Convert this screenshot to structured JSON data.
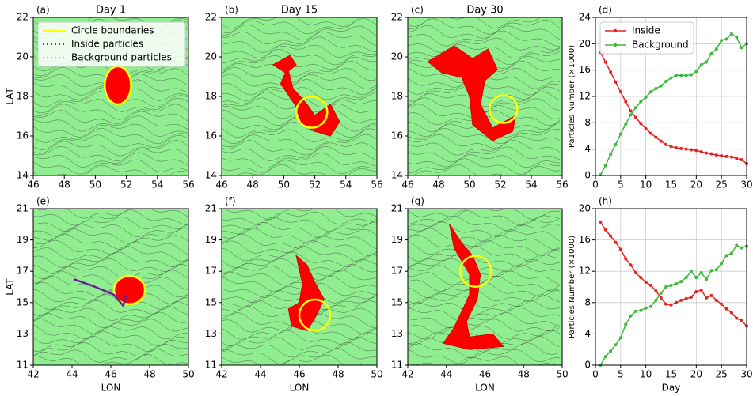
{
  "chart_data": [
    {
      "type": "map",
      "panel": "(a)",
      "title": "Day 1",
      "xlim": [
        46,
        56
      ],
      "ylim": [
        14,
        22
      ],
      "xticks": [
        46,
        48,
        50,
        52,
        54,
        56
      ],
      "yticks": [
        14,
        16,
        18,
        20,
        22
      ],
      "ylabel": "LAT",
      "legend": [
        {
          "name": "Circle boundaries",
          "color": "#ffff00",
          "style": "solid"
        },
        {
          "name": "Inside particles",
          "color": "#ff0000",
          "style": "dotted"
        },
        {
          "name": "Background particles",
          "color": "#66dd66",
          "style": "dotted"
        }
      ]
    },
    {
      "type": "map",
      "panel": "(b)",
      "title": "Day 15",
      "xlim": [
        46,
        56
      ],
      "ylim": [
        14,
        22
      ],
      "xticks": [
        46,
        48,
        50,
        52,
        54,
        56
      ],
      "yticks": [
        14,
        16,
        18,
        20,
        22
      ]
    },
    {
      "type": "map",
      "panel": "(c)",
      "title": "Day 30",
      "xlim": [
        46,
        56
      ],
      "ylim": [
        14,
        22
      ],
      "xticks": [
        46,
        48,
        50,
        52,
        54,
        56
      ],
      "yticks": [
        14,
        16,
        18,
        20,
        22
      ]
    },
    {
      "type": "line",
      "panel": "(d)",
      "xlim": [
        0,
        30
      ],
      "ylim": [
        0,
        24
      ],
      "xticks": [
        0,
        5,
        10,
        15,
        20,
        25,
        30
      ],
      "yticks": [
        0,
        4,
        8,
        12,
        16,
        20,
        24
      ],
      "ylabel": "Particles Number (×1000)",
      "grid": true,
      "legend": "upper left",
      "x": [
        1,
        2,
        3,
        4,
        5,
        6,
        7,
        8,
        9,
        10,
        11,
        12,
        13,
        14,
        15,
        16,
        17,
        18,
        19,
        20,
        21,
        22,
        23,
        24,
        25,
        26,
        27,
        28,
        29,
        30
      ],
      "series": [
        {
          "name": "Inside",
          "color": "#e8231f",
          "values": [
            18.7,
            17.2,
            15.7,
            14.2,
            12.7,
            11.2,
            9.8,
            8.8,
            7.9,
            7.1,
            6.4,
            5.8,
            5.2,
            4.7,
            4.4,
            4.2,
            4.1,
            4.0,
            3.9,
            3.8,
            3.6,
            3.4,
            3.3,
            3.1,
            3.0,
            2.9,
            2.8,
            2.6,
            2.4,
            1.8
          ]
        },
        {
          "name": "Background",
          "color": "#3cb83c",
          "values": [
            0.1,
            1.5,
            3.2,
            4.7,
            6.3,
            7.8,
            9.2,
            10.3,
            11.2,
            11.9,
            12.7,
            13.2,
            13.6,
            14.3,
            14.8,
            15.2,
            15.2,
            15.2,
            15.3,
            15.8,
            16.8,
            17.2,
            18.5,
            19.2,
            20.5,
            20.7,
            21.5,
            21.0,
            19.4,
            20.0
          ]
        }
      ]
    },
    {
      "type": "map",
      "panel": "(e)",
      "xlim": [
        42,
        50
      ],
      "ylim": [
        11,
        21
      ],
      "xticks": [
        42,
        44,
        46,
        48,
        50
      ],
      "yticks": [
        11,
        13,
        15,
        17,
        19,
        21
      ],
      "xlabel": "LON",
      "ylabel": "LAT"
    },
    {
      "type": "map",
      "panel": "(f)",
      "xlim": [
        42,
        50
      ],
      "ylim": [
        11,
        21
      ],
      "xticks": [
        42,
        44,
        46,
        48,
        50
      ],
      "yticks": [
        11,
        13,
        15,
        17,
        19,
        21
      ],
      "xlabel": "LON"
    },
    {
      "type": "map",
      "panel": "(g)",
      "xlim": [
        42,
        50
      ],
      "ylim": [
        11,
        21
      ],
      "xticks": [
        42,
        44,
        46,
        48,
        50
      ],
      "yticks": [
        11,
        13,
        15,
        17,
        19,
        21
      ],
      "xlabel": "LON"
    },
    {
      "type": "line",
      "panel": "(h)",
      "xlim": [
        0,
        30
      ],
      "ylim": [
        0,
        20
      ],
      "xticks": [
        0,
        5,
        10,
        15,
        20,
        25,
        30
      ],
      "yticks": [
        0,
        4,
        8,
        12,
        16,
        20
      ],
      "ylabel": "Particles Number (×1000)",
      "xlabel": "Day",
      "grid": true,
      "x": [
        1,
        2,
        3,
        4,
        5,
        6,
        7,
        8,
        9,
        10,
        11,
        12,
        13,
        14,
        15,
        16,
        17,
        18,
        19,
        20,
        21,
        22,
        23,
        24,
        25,
        26,
        27,
        28,
        29,
        30
      ],
      "series": [
        {
          "color": "#e8231f",
          "values": [
            18.3,
            17.3,
            16.5,
            15.7,
            14.8,
            13.6,
            12.8,
            11.8,
            11.2,
            10.6,
            10.2,
            9.5,
            8.6,
            7.8,
            7.7,
            8.0,
            8.3,
            8.5,
            8.7,
            9.4,
            9.6,
            8.6,
            8.9,
            8.3,
            7.8,
            7.2,
            6.7,
            6.0,
            5.7,
            5.0
          ]
        },
        {
          "color": "#3cb83c",
          "values": [
            0.0,
            1.1,
            1.8,
            2.6,
            3.5,
            5.2,
            6.3,
            6.9,
            7.0,
            7.3,
            7.5,
            8.3,
            9.2,
            10.0,
            10.2,
            10.4,
            10.7,
            11.2,
            12.0,
            11.2,
            11.8,
            11.0,
            12.1,
            12.2,
            13.0,
            14.0,
            14.3,
            15.3,
            15.0,
            15.2
          ]
        }
      ]
    }
  ]
}
